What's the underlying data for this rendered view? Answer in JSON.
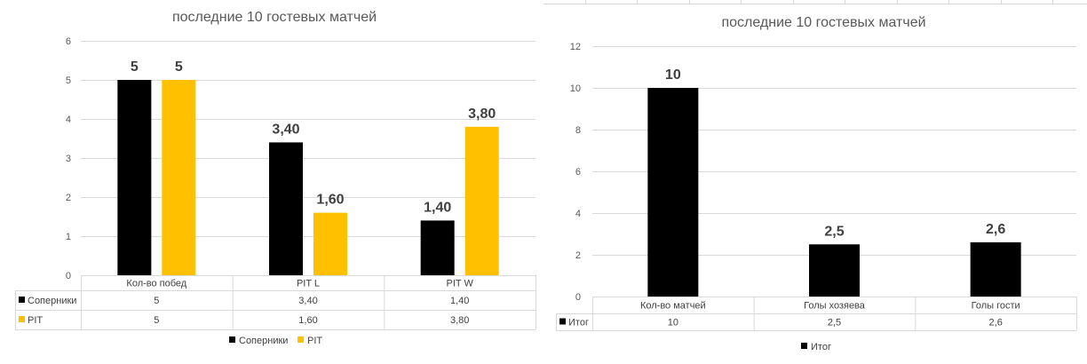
{
  "chart_data": [
    {
      "type": "bar",
      "title": "последние 10 гостевых матчей",
      "categories": [
        "Кол-во побед",
        "PIT L",
        "PIT W"
      ],
      "series": [
        {
          "name": "Соперники",
          "values": [
            5,
            3.4,
            1.4
          ],
          "labels": [
            "5",
            "3,40",
            "1,40"
          ],
          "color": "#000000"
        },
        {
          "name": "PIT",
          "values": [
            5,
            1.6,
            3.8
          ],
          "labels": [
            "5",
            "1,60",
            "3,80"
          ],
          "color": "#ffc000"
        }
      ],
      "ylim": [
        0,
        6
      ],
      "yticks": [
        "0",
        "1",
        "2",
        "3",
        "4",
        "5",
        "6"
      ],
      "grid": true,
      "data_table": true,
      "legend": "bottom"
    },
    {
      "type": "bar",
      "title": "последние 10 гостевых матчей",
      "categories": [
        "Кол-во матчей",
        "Голы хозяева",
        "Голы гости"
      ],
      "series": [
        {
          "name": "Итог",
          "values": [
            10,
            2.5,
            2.6
          ],
          "labels": [
            "10",
            "2,5",
            "2,6"
          ],
          "color": "#000000"
        }
      ],
      "ylim": [
        0,
        12
      ],
      "yticks": [
        "0",
        "2",
        "4",
        "6",
        "8",
        "10",
        "12"
      ],
      "grid": true,
      "data_table": true,
      "legend": "bottom"
    }
  ]
}
